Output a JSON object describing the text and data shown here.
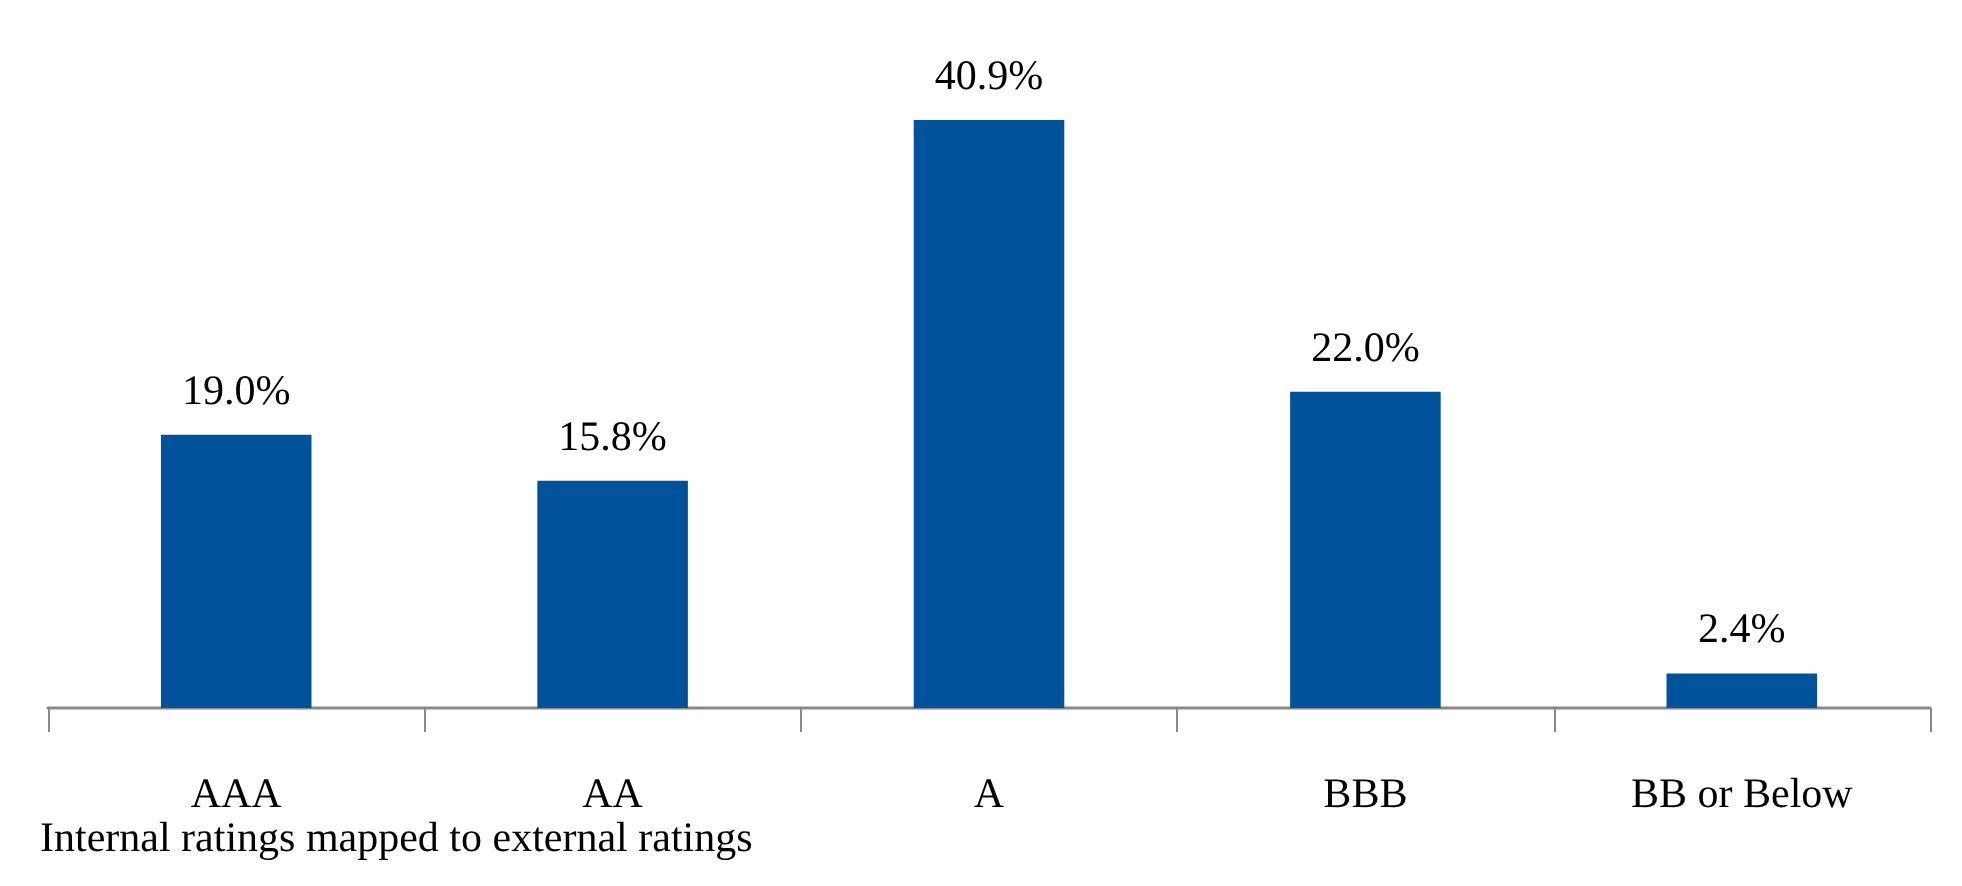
{
  "chart_data": {
    "type": "bar",
    "categories": [
      "AAA",
      "AA",
      "A",
      "BBB",
      "BB or Below"
    ],
    "values": [
      19.0,
      15.8,
      40.9,
      22.0,
      2.4
    ],
    "value_labels": [
      "19.0%",
      "15.8%",
      "40.9%",
      "22.0%",
      "2.4%"
    ],
    "color": "#00529b",
    "xlabel": "Internal ratings mapped to external ratings"
  }
}
